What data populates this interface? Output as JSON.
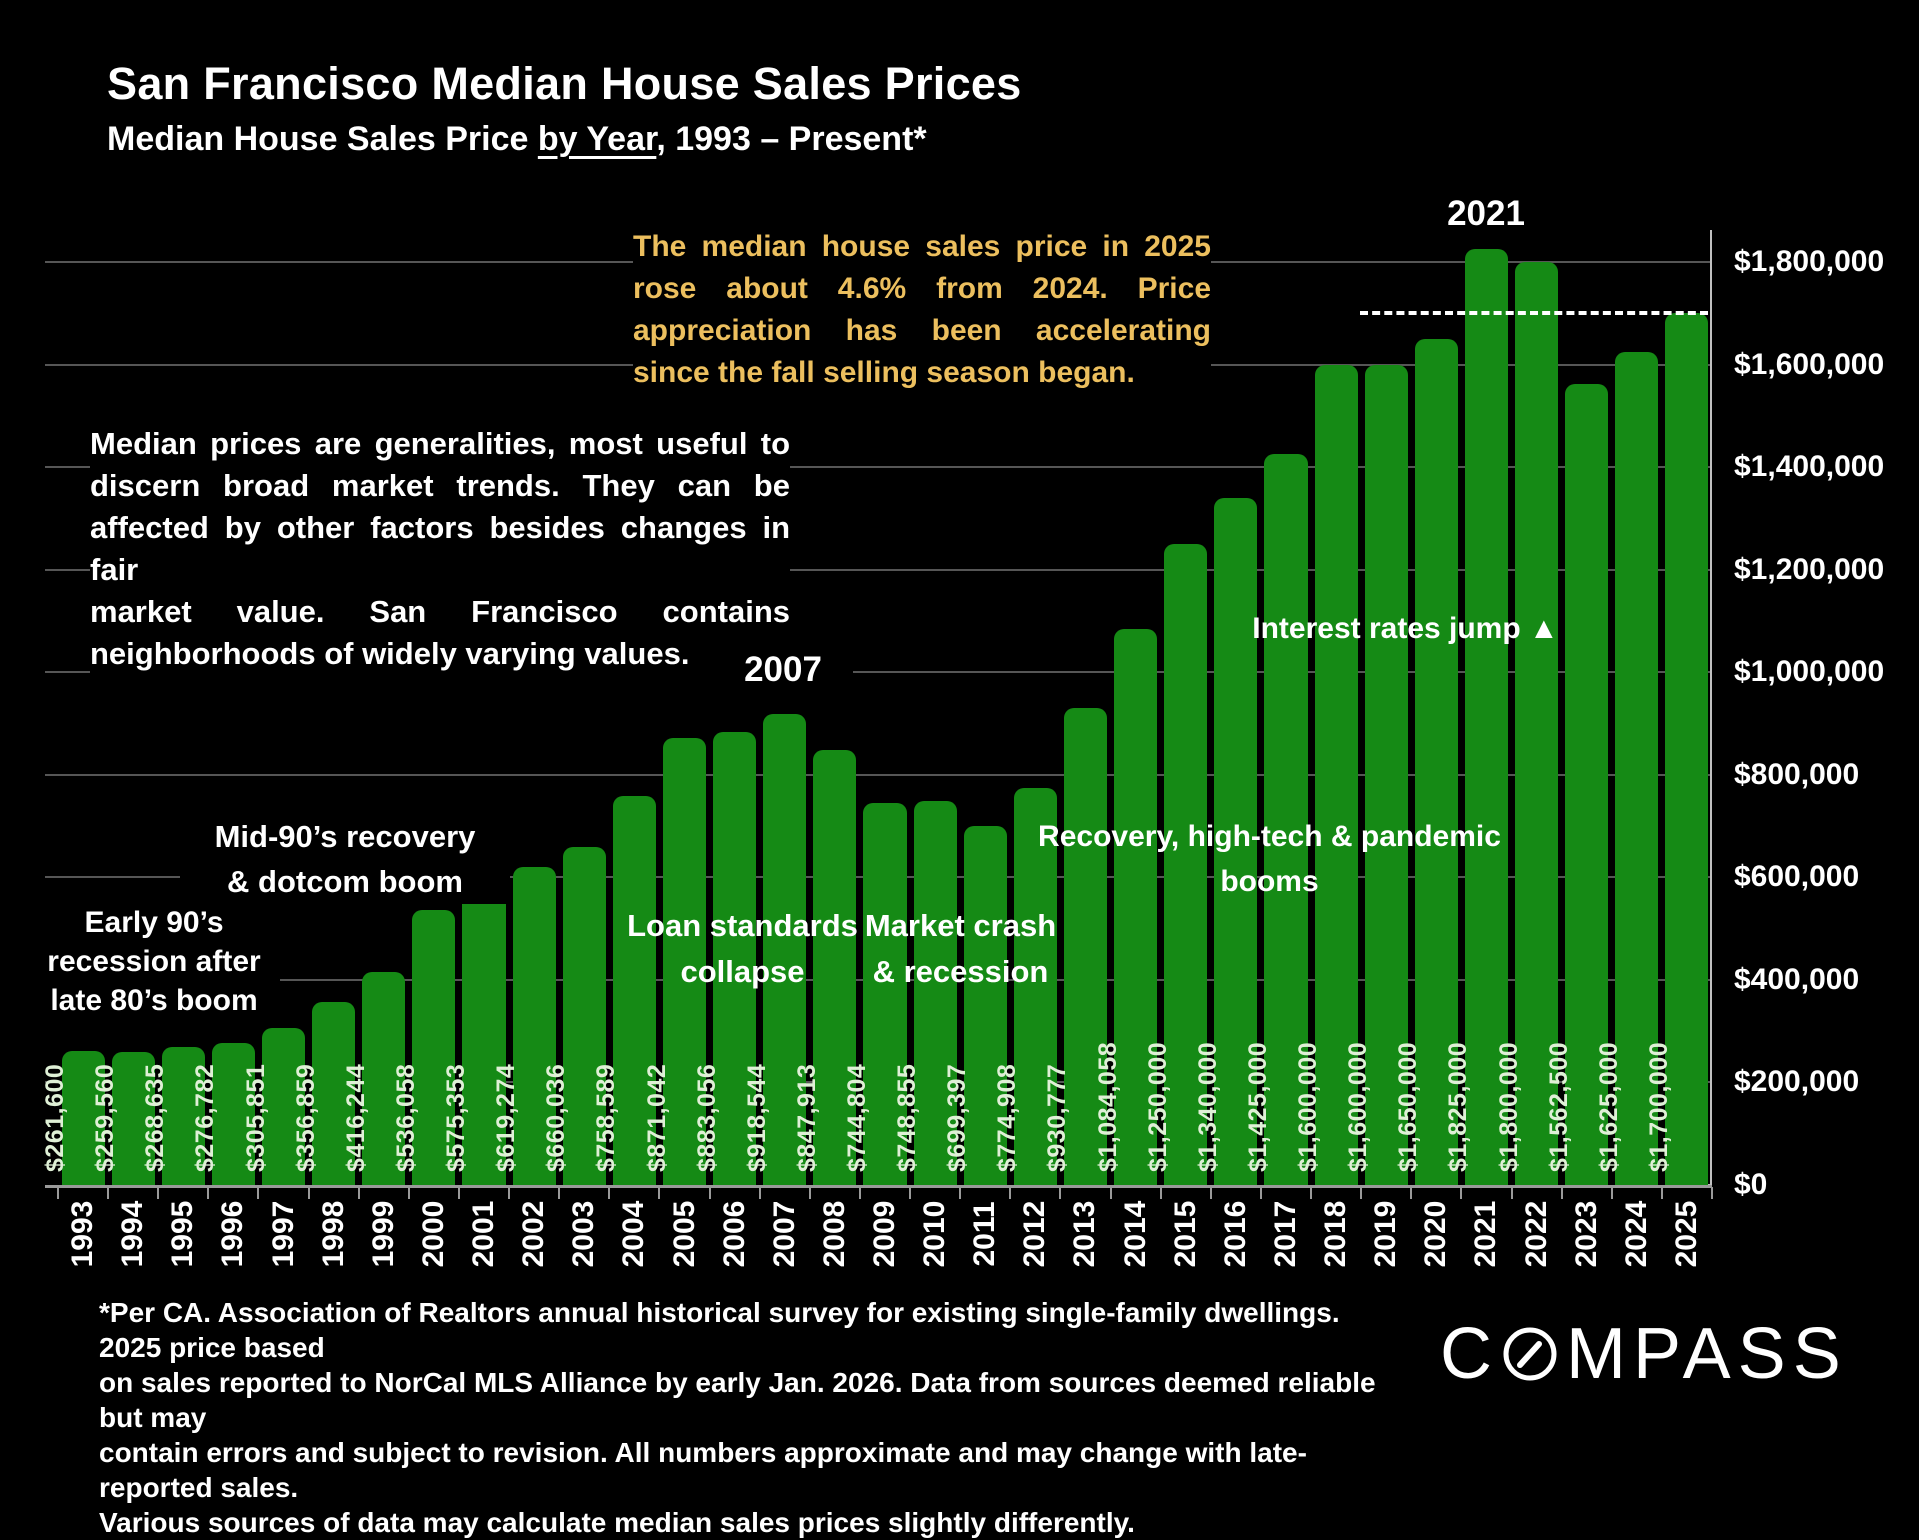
{
  "header": {
    "title": "San Francisco Median House Sales Prices",
    "subtitle_prefix": "Median House Sales Price ",
    "subtitle_underlined": "by Year",
    "subtitle_suffix": ", 1993 – Present*"
  },
  "callouts": {
    "accent_color": "#ecbf5e",
    "price_2025_lines": [
      "The median house sales price in 2025",
      "rose about 4.6% from 2024. Price",
      "appreciation has been accelerating",
      "since the fall selling season began."
    ],
    "median_note_lines": [
      "Median prices are generalities, most useful to",
      "discern broad market trends. They can be",
      "affected by other factors besides changes in fair",
      "market value. San Francisco contains",
      "neighborhoods of widely varying values."
    ]
  },
  "annotations": {
    "early_90s": [
      "Early 90’s",
      "recession after",
      "late 80’s boom"
    ],
    "mid_90s": [
      "Mid-90’s recovery",
      "& dotcom boom"
    ],
    "peak_2007": "2007",
    "loan_standards": [
      "Loan standards",
      "collapse"
    ],
    "market_crash": [
      "Market crash",
      "& recession"
    ],
    "recovery": [
      "Recovery, high-tech & pandemic",
      "booms"
    ],
    "interest_rates": "Interest rates jump ▲",
    "peak_2021": "2021"
  },
  "chart_data": {
    "type": "bar",
    "title": "San Francisco Median House Sales Prices",
    "xlabel": "",
    "ylabel": "",
    "categories": [
      "1993",
      "1994",
      "1995",
      "1996",
      "1997",
      "1998",
      "1999",
      "2000",
      "2001",
      "2002",
      "2003",
      "2004",
      "2005",
      "2006",
      "2007",
      "2008",
      "2009",
      "2010",
      "2011",
      "2012",
      "2013",
      "2014",
      "2015",
      "2016",
      "2017",
      "2018",
      "2019",
      "2020",
      "2021",
      "2022",
      "2023",
      "2024",
      "2025"
    ],
    "values": [
      261600,
      259560,
      268635,
      276782,
      305851,
      356859,
      416244,
      536058,
      575353,
      619274,
      660036,
      758589,
      871042,
      883056,
      918544,
      847913,
      744804,
      748855,
      699397,
      774908,
      930777,
      1084058,
      1250000,
      1340000,
      1425000,
      1600000,
      1600000,
      1650000,
      1825000,
      1800000,
      1562500,
      1625000,
      1700000
    ],
    "bar_labels": [
      "$261,600",
      "$259,560",
      "$268,635",
      "$276,782",
      "$305,851",
      "$356,859",
      "$416,244",
      "$536,058",
      "$575,353",
      "$619,274",
      "$660,036",
      "$758,589",
      "$871,042",
      "$883,056",
      "$918,544",
      "$847,913",
      "$744,804",
      "$748,855",
      "$699,397",
      "$774,908",
      "$930,777",
      "$1,084,058",
      "$1,250,000",
      "$1,340,000",
      "$1,425,000",
      "$1,600,000",
      "$1,600,000",
      "$1,650,000",
      "$1,825,000",
      "$1,800,000",
      "$1,562,500",
      "$1,625,000",
      "$1,700,000"
    ],
    "ylim": [
      0,
      1800000
    ],
    "ytick_step": 200000,
    "ytick_labels": [
      "$0",
      "$200,000",
      "$400,000",
      "$600,000",
      "$800,000",
      "$1,000,000",
      "$1,200,000",
      "$1,400,000",
      "$1,600,000",
      "$1,800,000"
    ],
    "y_axis_side": "right",
    "grid": true,
    "legend": "none",
    "bar_color": "#158a15",
    "bar_label_color": "#dff0d6",
    "reference_line": {
      "value": 1700000,
      "style": "dashed",
      "color": "#ffffff"
    }
  },
  "footer": {
    "disclaimer_lines": [
      "*Per CA. Association of Realtors annual historical survey for existing single-family dwellings. 2025 price based",
      "on sales reported to NorCal MLS Alliance by early Jan. 2026. Data from sources deemed reliable but may",
      "contain errors and subject to revision. All numbers approximate and may change with late-reported sales.",
      "Various sources of data may calculate median sales prices slightly differently."
    ],
    "logo": {
      "name": "COMPASS",
      "prefix": "C",
      "suffix": "MPASS"
    }
  }
}
